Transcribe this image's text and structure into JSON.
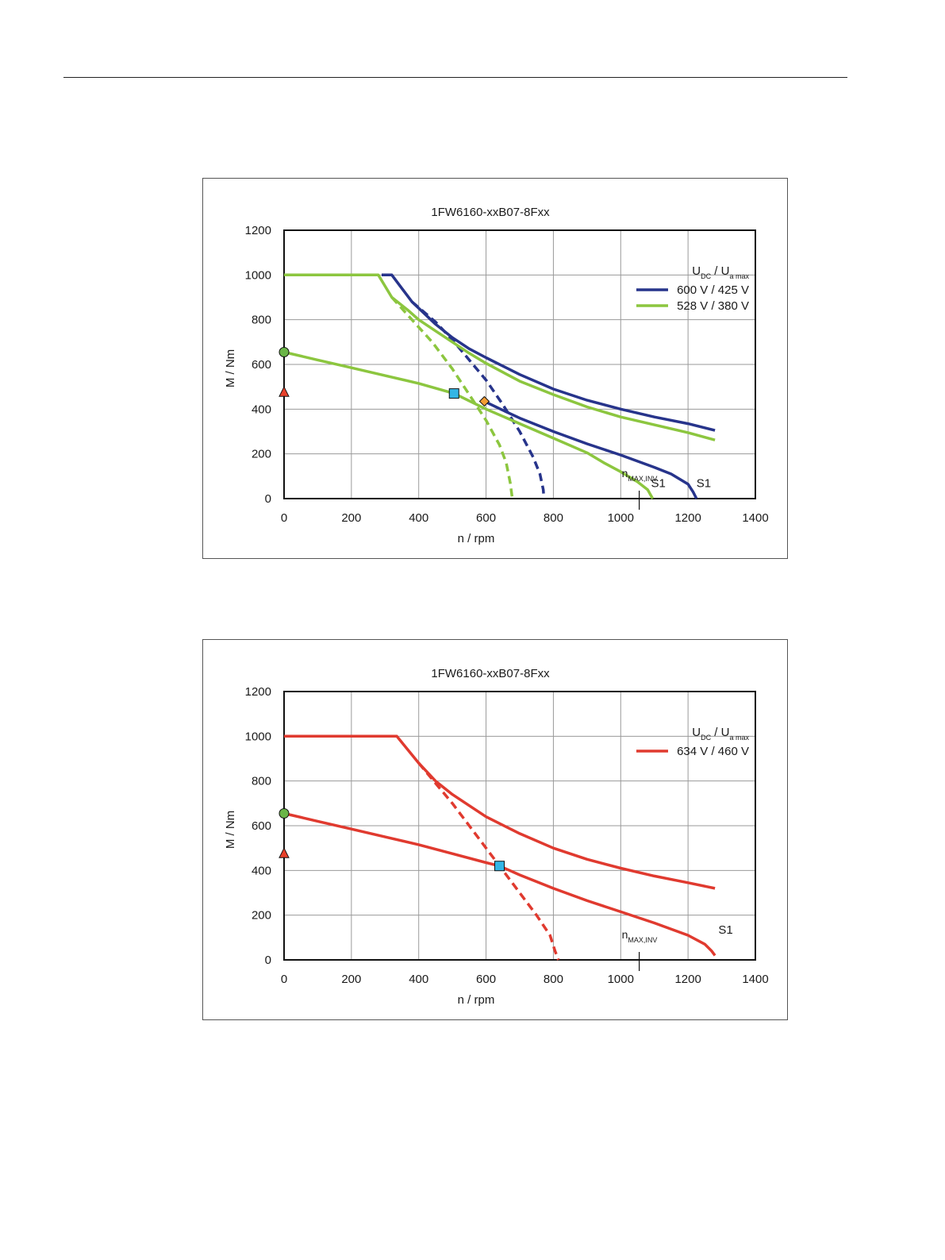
{
  "chart_data": [
    {
      "type": "line",
      "title": "1FW6160-xxB07-8Fxx",
      "xlabel": "n / rpm",
      "ylabel": "M / Nm",
      "xlim": [
        0,
        1400
      ],
      "ylim": [
        0,
        1200
      ],
      "x_ticks": [
        "0",
        "200",
        "400",
        "600",
        "800",
        "1000",
        "1200",
        "1400"
      ],
      "y_ticks": [
        "0",
        "200",
        "400",
        "600",
        "800",
        "1000",
        "1200"
      ],
      "grid": true,
      "legend_position": "top-right",
      "legend_title": {
        "u1": "U",
        "s1": "DC",
        "sep": "/",
        "u2": "U",
        "s2": "a max"
      },
      "legend": [
        {
          "label": "600 V / 425 V",
          "color": "#27348b"
        },
        {
          "label": "528 V / 380 V",
          "color": "#8cc63f"
        }
      ],
      "series": [
        {
          "name": "600 V / 425 V",
          "color": "#27348b",
          "dash": false,
          "points": [
            [
              290,
              1000
            ],
            [
              320,
              1000
            ],
            [
              380,
              880
            ],
            [
              450,
              780
            ],
            [
              500,
              720
            ],
            [
              550,
              670
            ],
            [
              600,
              630
            ],
            [
              700,
              555
            ],
            [
              800,
              490
            ],
            [
              900,
              440
            ],
            [
              1000,
              400
            ],
            [
              1100,
              365
            ],
            [
              1200,
              335
            ],
            [
              1280,
              305
            ]
          ]
        },
        {
          "name": "",
          "color": "#27348b",
          "dash": true,
          "points": [
            [
              380,
              880
            ],
            [
              450,
              790
            ],
            [
              500,
              710
            ],
            [
              550,
              620
            ],
            [
              600,
              530
            ],
            [
              650,
              420
            ],
            [
              700,
              300
            ],
            [
              740,
              185
            ],
            [
              760,
              110
            ],
            [
              770,
              40
            ],
            [
              772,
              0
            ]
          ]
        },
        {
          "name": "",
          "color": "#27348b",
          "dash": false,
          "points": [
            [
              595,
              435
            ],
            [
              650,
              395
            ],
            [
              700,
              360
            ],
            [
              800,
              300
            ],
            [
              900,
              245
            ],
            [
              1000,
              195
            ],
            [
              1100,
              140
            ],
            [
              1150,
              110
            ],
            [
              1200,
              65
            ],
            [
              1215,
              30
            ],
            [
              1225,
              0
            ]
          ]
        },
        {
          "name": "528 V / 380 V",
          "color": "#8cc63f",
          "dash": false,
          "points": [
            [
              0,
              1000
            ],
            [
              280,
              1000
            ],
            [
              320,
              900
            ],
            [
              370,
              840
            ],
            [
              400,
              800
            ],
            [
              450,
              750
            ],
            [
              500,
              700
            ],
            [
              550,
              650
            ],
            [
              600,
              605
            ],
            [
              700,
              525
            ],
            [
              800,
              465
            ],
            [
              900,
              410
            ],
            [
              1000,
              365
            ],
            [
              1100,
              330
            ],
            [
              1200,
              295
            ],
            [
              1280,
              262
            ]
          ]
        },
        {
          "name": "",
          "color": "#8cc63f",
          "dash": true,
          "points": [
            [
              320,
              900
            ],
            [
              380,
              800
            ],
            [
              440,
              700
            ],
            [
              500,
              580
            ],
            [
              550,
              465
            ],
            [
              600,
              350
            ],
            [
              640,
              240
            ],
            [
              660,
              160
            ],
            [
              672,
              70
            ],
            [
              678,
              0
            ]
          ]
        },
        {
          "name": "",
          "color": "#8cc63f",
          "dash": false,
          "points": [
            [
              0,
              655
            ],
            [
              100,
              620
            ],
            [
              200,
              585
            ],
            [
              300,
              550
            ],
            [
              400,
              515
            ],
            [
              505,
              470
            ],
            [
              600,
              400
            ],
            [
              700,
              335
            ],
            [
              800,
              270
            ],
            [
              900,
              205
            ],
            [
              950,
              160
            ],
            [
              1000,
              120
            ],
            [
              1050,
              75
            ],
            [
              1080,
              40
            ],
            [
              1095,
              0
            ]
          ]
        }
      ],
      "markers": [
        {
          "shape": "circle",
          "x": 0,
          "y": 655,
          "fill": "#6ab547"
        },
        {
          "shape": "triangle",
          "x": 0,
          "y": 475,
          "fill": "#e8412b"
        },
        {
          "shape": "square",
          "x": 505,
          "y": 470,
          "fill": "#33b5e5"
        },
        {
          "shape": "diamond",
          "x": 595,
          "y": 435,
          "fill": "#f39c33"
        }
      ],
      "nmax_x": 1055,
      "nmax_label": "n",
      "nmax_sub": "MAX,INV",
      "s1_labels": [
        {
          "text": "S1",
          "x": 1090,
          "y": 30
        },
        {
          "text": "S1",
          "x": 1225,
          "y": 30
        }
      ]
    },
    {
      "type": "line",
      "title": "1FW6160-xxB07-8Fxx",
      "xlabel": "n / rpm",
      "ylabel": "M / Nm",
      "xlim": [
        0,
        1400
      ],
      "ylim": [
        0,
        1200
      ],
      "x_ticks": [
        "0",
        "200",
        "400",
        "600",
        "800",
        "1000",
        "1200",
        "1400"
      ],
      "y_ticks": [
        "0",
        "200",
        "400",
        "600",
        "800",
        "1000",
        "1200"
      ],
      "grid": true,
      "legend_position": "top-right",
      "legend_title": {
        "u1": "U",
        "s1": "DC",
        "sep": "/",
        "u2": "U",
        "s2": "a max"
      },
      "legend": [
        {
          "label": "634 V / 460 V",
          "color": "#e03a2f"
        }
      ],
      "series": [
        {
          "name": "634 V / 460 V",
          "color": "#e03a2f",
          "dash": false,
          "points": [
            [
              0,
              1000
            ],
            [
              335,
              1000
            ],
            [
              400,
              880
            ],
            [
              450,
              800
            ],
            [
              500,
              740
            ],
            [
              550,
              690
            ],
            [
              600,
              640
            ],
            [
              700,
              565
            ],
            [
              800,
              500
            ],
            [
              900,
              450
            ],
            [
              1000,
              410
            ],
            [
              1100,
              375
            ],
            [
              1200,
              345
            ],
            [
              1280,
              320
            ]
          ]
        },
        {
          "name": "",
          "color": "#e03a2f",
          "dash": true,
          "points": [
            [
              400,
              880
            ],
            [
              450,
              790
            ],
            [
              500,
              700
            ],
            [
              550,
              600
            ],
            [
              600,
              500
            ],
            [
              650,
              400
            ],
            [
              700,
              300
            ],
            [
              750,
              200
            ],
            [
              790,
              110
            ],
            [
              805,
              40
            ],
            [
              815,
              0
            ]
          ]
        },
        {
          "name": "",
          "color": "#e03a2f",
          "dash": false,
          "points": [
            [
              0,
              655
            ],
            [
              100,
              620
            ],
            [
              200,
              585
            ],
            [
              300,
              550
            ],
            [
              400,
              515
            ],
            [
              500,
              475
            ],
            [
              600,
              435
            ],
            [
              640,
              420
            ],
            [
              700,
              380
            ],
            [
              800,
              320
            ],
            [
              900,
              265
            ],
            [
              1000,
              215
            ],
            [
              1100,
              165
            ],
            [
              1200,
              110
            ],
            [
              1250,
              70
            ],
            [
              1270,
              40
            ],
            [
              1280,
              20
            ]
          ]
        }
      ],
      "markers": [
        {
          "shape": "circle",
          "x": 0,
          "y": 655,
          "fill": "#6ab547"
        },
        {
          "shape": "triangle",
          "x": 0,
          "y": 475,
          "fill": "#e8412b"
        },
        {
          "shape": "square",
          "x": 640,
          "y": 420,
          "fill": "#33b5e5"
        }
      ],
      "nmax_x": 1055,
      "nmax_label": "n",
      "nmax_sub": "MAX,INV",
      "s1_labels": [
        {
          "text": "S1",
          "x": 1290,
          "y": 95
        }
      ]
    }
  ]
}
